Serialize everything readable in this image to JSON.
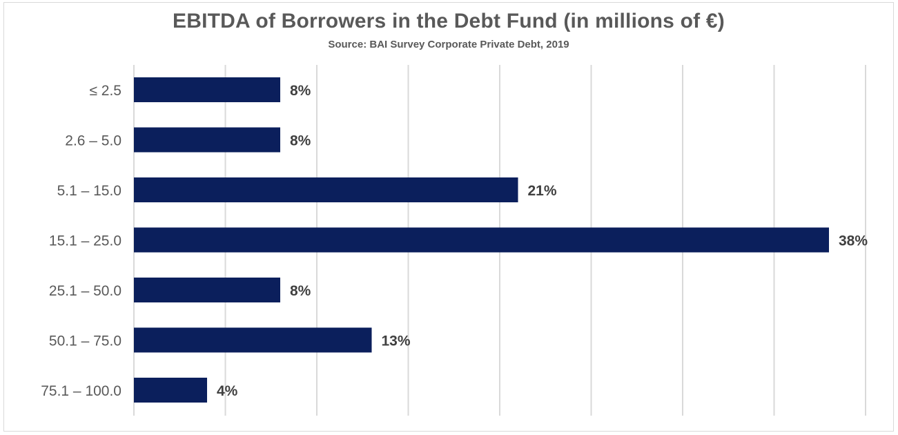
{
  "chart_data": {
    "type": "bar",
    "orientation": "horizontal",
    "title": "EBITDA of Borrowers in the Debt Fund (in millions of €)",
    "subtitle": "Source: BAI Survey Corporate Private Debt, 2019",
    "categories": [
      "≤ 2.5",
      "2.6 – 5.0",
      "5.1 – 15.0",
      "15.1 – 25.0",
      "25.1 – 50.0",
      "50.1 – 75.0",
      "75.1 – 100.0"
    ],
    "values": [
      8,
      8,
      21,
      38,
      8,
      13,
      4
    ],
    "data_labels": [
      "8%",
      "8%",
      "21%",
      "38%",
      "8%",
      "13%",
      "4%"
    ],
    "xlim": [
      0,
      40
    ],
    "xlabel": "",
    "ylabel": "",
    "grid": true,
    "legend": "none",
    "bar_color": "#0b1f5c",
    "grid_color": "#d9d9d9"
  }
}
